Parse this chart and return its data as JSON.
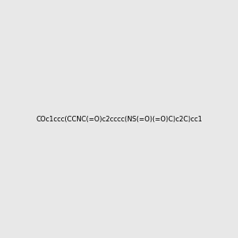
{
  "smiles": "COc1ccc(CCNC(=O)c2cccc(NS(=O)(=O)C)c2C)cc1",
  "image_size": 300,
  "background_color": "#e8e8e8",
  "atom_colors": {
    "O": "#ff0000",
    "N": "#0000ff",
    "S": "#cccc00"
  },
  "title": "",
  "figsize": [
    3.0,
    3.0
  ],
  "dpi": 100
}
